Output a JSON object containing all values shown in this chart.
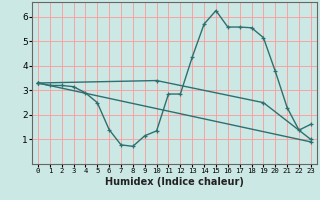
{
  "title": "",
  "xlabel": "Humidex (Indice chaleur)",
  "bg_color": "#cce8e4",
  "grid_color": "#ff9999",
  "line_color": "#2d7070",
  "xlim": [
    -0.5,
    23.5
  ],
  "ylim": [
    0,
    6.6
  ],
  "yticks": [
    1,
    2,
    3,
    4,
    5,
    6
  ],
  "xticks": [
    0,
    1,
    2,
    3,
    4,
    5,
    6,
    7,
    8,
    9,
    10,
    11,
    12,
    13,
    14,
    15,
    16,
    17,
    18,
    19,
    20,
    21,
    22,
    23
  ],
  "series1_x": [
    0,
    1,
    2,
    3,
    4,
    5,
    6,
    7,
    8,
    9,
    10,
    11,
    12,
    13,
    14,
    15,
    16,
    17,
    18,
    19,
    20,
    21,
    22,
    23
  ],
  "series1_y": [
    3.3,
    3.2,
    3.2,
    3.15,
    2.9,
    2.5,
    1.4,
    0.78,
    0.72,
    1.15,
    1.35,
    2.85,
    2.85,
    4.35,
    5.7,
    6.25,
    5.58,
    5.58,
    5.55,
    5.15,
    3.78,
    2.3,
    1.38,
    1.62
  ],
  "series2_x": [
    0,
    23
  ],
  "series2_y": [
    3.3,
    0.9
  ],
  "series3_x": [
    0,
    10,
    19,
    23
  ],
  "series3_y": [
    3.3,
    3.4,
    2.5,
    1.0
  ]
}
